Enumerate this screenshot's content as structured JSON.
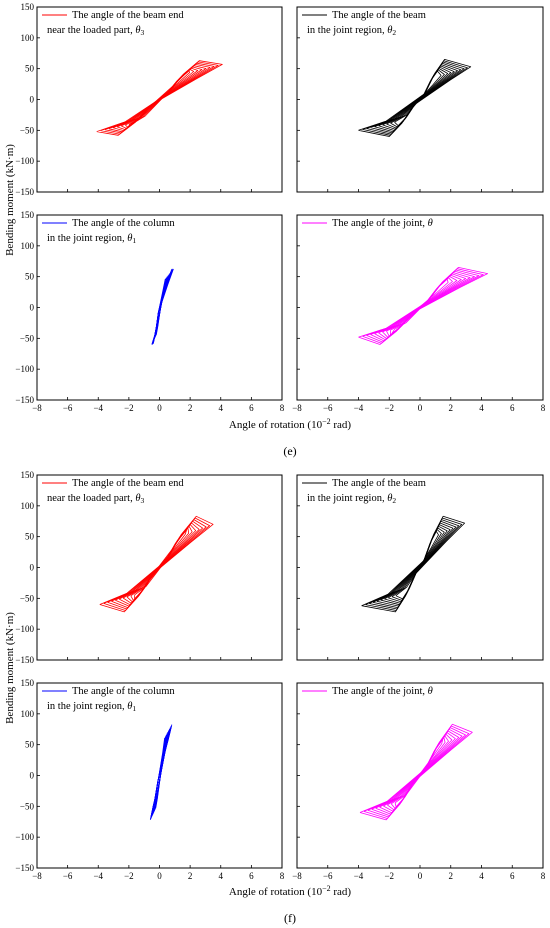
{
  "figure": {
    "xlabel_main": "Angle of rotation (10",
    "xlabel_exp": "−2",
    "xlabel_unit": " rad)",
    "ylabel": "Bending moment (kN·m)",
    "colors": {
      "theta3": "#ff0000",
      "theta2": "#000000",
      "theta1": "#0000ff",
      "theta": "#ff00ff"
    }
  },
  "chart_data": [
    {
      "type": "line",
      "subfigure_label": "(e)",
      "xlim": [
        -8,
        8
      ],
      "ylim": [
        -150,
        150
      ],
      "xticks": [
        "−8",
        "−6",
        "−4",
        "−2",
        "0",
        "2",
        "4",
        "6",
        "8"
      ],
      "yticks": [
        "150",
        "100",
        "50",
        "0",
        "−50",
        "−100",
        "−150"
      ],
      "legend_position": "top-left",
      "panels": [
        {
          "pos": "top-left",
          "color": "#ff0000",
          "legend": [
            "The angle of the beam end",
            "near the loaded part, ",
            "θ",
            "3"
          ],
          "loop": {
            "cycles": 10,
            "x_min": -4.1,
            "x_max": 4.1,
            "y_min": -52,
            "y_max": 57,
            "pos_peak_x": 2.6,
            "pos_peak_y": 63,
            "neg_peak_x": -2.7,
            "neg_peak_y": -58
          }
        },
        {
          "pos": "top-right",
          "color": "#000000",
          "legend": [
            "The angle of the beam",
            "in the joint region, ",
            "θ",
            "2"
          ],
          "loop": {
            "cycles": 10,
            "x_min": -4.0,
            "x_max": 3.3,
            "y_min": -50,
            "y_max": 53,
            "pos_peak_x": 1.6,
            "pos_peak_y": 65,
            "neg_peak_x": -2.0,
            "neg_peak_y": -60
          }
        },
        {
          "pos": "bottom-left",
          "color": "#0000ff",
          "legend": [
            "The angle of the column",
            "in the joint region, ",
            "θ",
            "1"
          ],
          "loop": {
            "cycles": 10,
            "x_min": -0.5,
            "x_max": 0.9,
            "y_min": -60,
            "y_max": 62,
            "pos_peak_x": 0.8,
            "pos_peak_y": 62,
            "neg_peak_x": -0.4,
            "neg_peak_y": -58
          }
        },
        {
          "pos": "bottom-right",
          "color": "#ff00ff",
          "legend": [
            "The angle of the joint, ",
            "θ",
            "",
            ""
          ],
          "loop": {
            "cycles": 10,
            "x_min": -4.0,
            "x_max": 4.4,
            "y_min": -48,
            "y_max": 55,
            "pos_peak_x": 2.5,
            "pos_peak_y": 65,
            "neg_peak_x": -2.6,
            "neg_peak_y": -60
          }
        }
      ]
    },
    {
      "type": "line",
      "subfigure_label": "(f)",
      "xlim": [
        -8,
        8
      ],
      "ylim": [
        -150,
        150
      ],
      "xticks": [
        "−8",
        "−6",
        "−4",
        "−2",
        "0",
        "2",
        "4",
        "6",
        "8"
      ],
      "yticks": [
        "150",
        "100",
        "50",
        "0",
        "−50",
        "−100",
        "−150"
      ],
      "legend_position": "top-left",
      "panels": [
        {
          "pos": "top-left",
          "color": "#ff0000",
          "legend": [
            "The angle of the beam end",
            "near the loaded part, ",
            "θ",
            "3"
          ],
          "loop": {
            "cycles": 10,
            "x_min": -3.9,
            "x_max": 3.5,
            "y_min": -60,
            "y_max": 70,
            "pos_peak_x": 2.4,
            "pos_peak_y": 83,
            "neg_peak_x": -2.3,
            "neg_peak_y": -72
          }
        },
        {
          "pos": "top-right",
          "color": "#000000",
          "legend": [
            "The angle of the beam",
            "in the joint region, ",
            "θ",
            "2"
          ],
          "loop": {
            "cycles": 10,
            "x_min": -3.8,
            "x_max": 2.9,
            "y_min": -62,
            "y_max": 72,
            "pos_peak_x": 1.5,
            "pos_peak_y": 83,
            "neg_peak_x": -1.6,
            "neg_peak_y": -72
          }
        },
        {
          "pos": "bottom-left",
          "color": "#0000ff",
          "legend": [
            "The angle of the column",
            "in the joint region, ",
            "θ",
            "1"
          ],
          "loop": {
            "cycles": 10,
            "x_min": -0.6,
            "x_max": 0.8,
            "y_min": -72,
            "y_max": 82,
            "pos_peak_x": 0.8,
            "pos_peak_y": 82,
            "neg_peak_x": -0.6,
            "neg_peak_y": -72
          }
        },
        {
          "pos": "bottom-right",
          "color": "#ff00ff",
          "legend": [
            "The angle of the joint, ",
            "θ",
            "",
            ""
          ],
          "loop": {
            "cycles": 10,
            "x_min": -3.9,
            "x_max": 3.4,
            "y_min": -60,
            "y_max": 70,
            "pos_peak_x": 2.1,
            "pos_peak_y": 83,
            "neg_peak_x": -2.2,
            "neg_peak_y": -72
          }
        }
      ]
    }
  ]
}
